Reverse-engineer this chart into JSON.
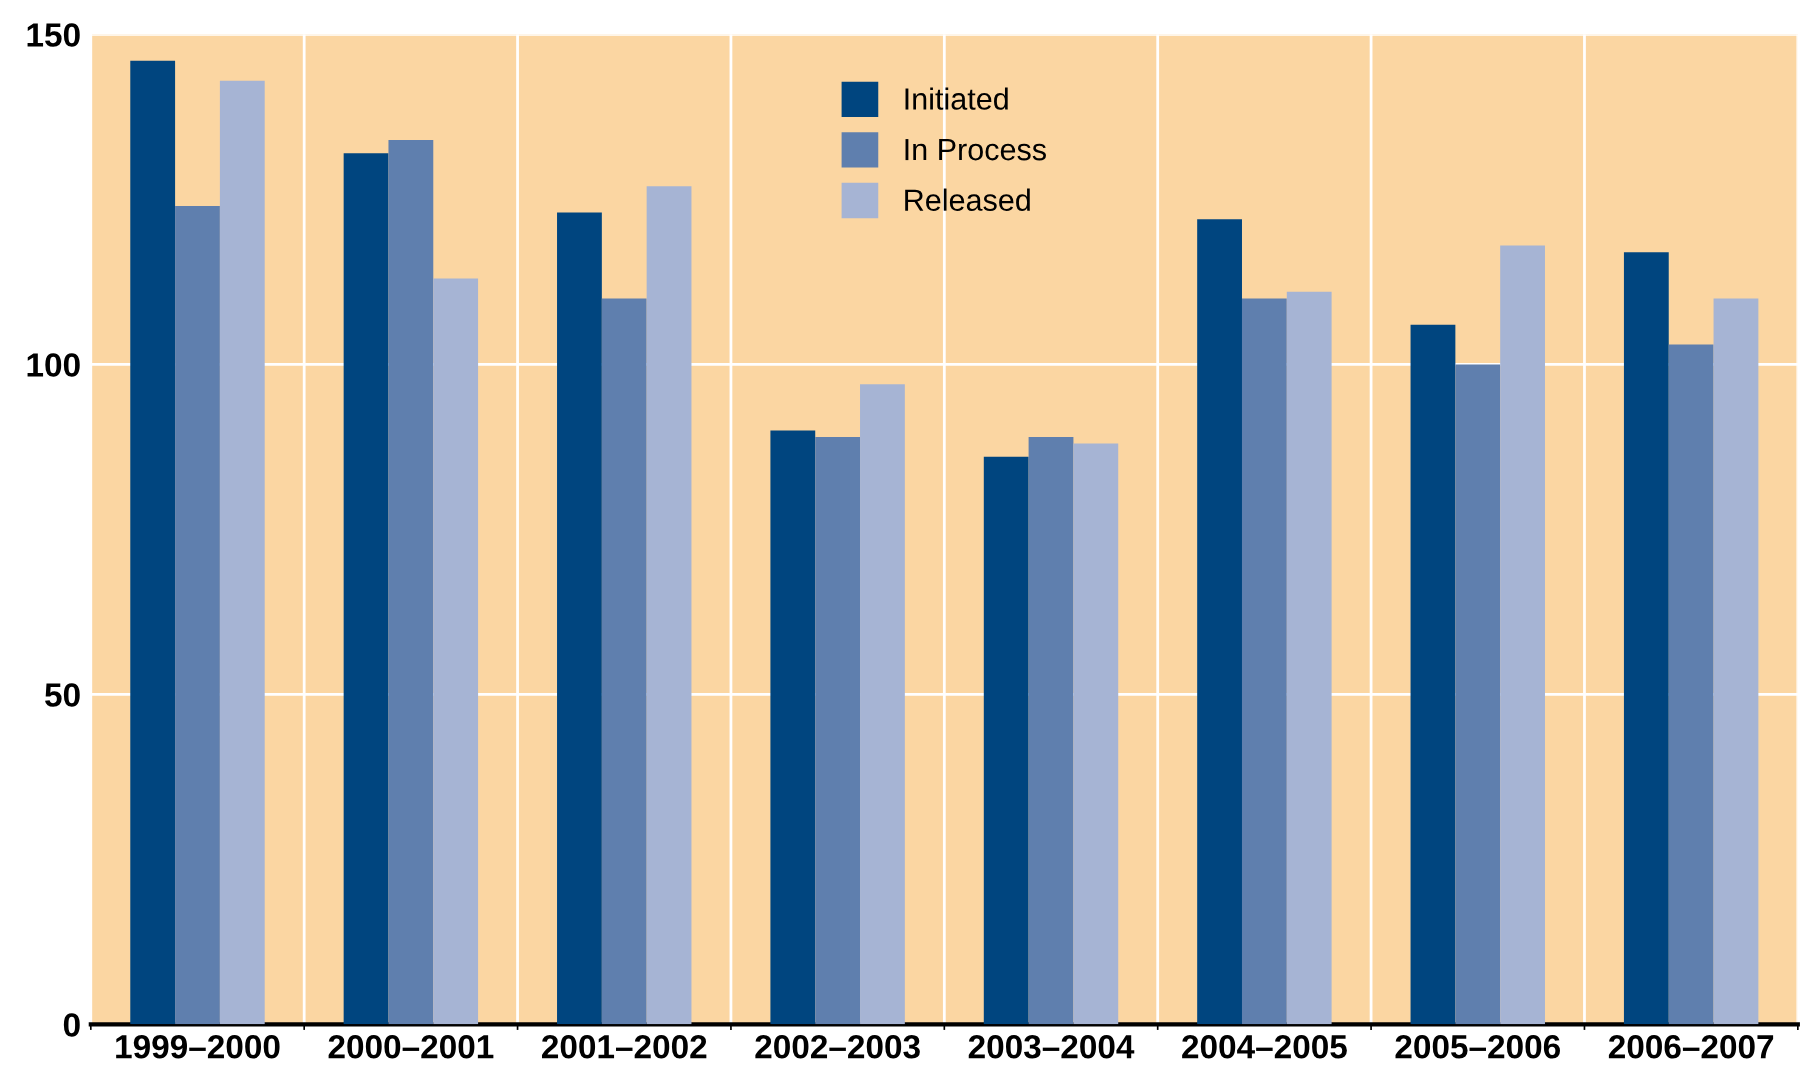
{
  "chart_data": {
    "type": "bar",
    "categories": [
      "1999–2000",
      "2000–2001",
      "2001–2002",
      "2002–2003",
      "2003–2004",
      "2004–2005",
      "2005–2006",
      "2006–2007"
    ],
    "series": [
      {
        "name": "Initiated",
        "color": "#00457f",
        "values": [
          146,
          132,
          123,
          90,
          86,
          122,
          106,
          117
        ]
      },
      {
        "name": "In Process",
        "color": "#5f7fae",
        "values": [
          124,
          134,
          110,
          89,
          89,
          110,
          100,
          103
        ]
      },
      {
        "name": "Released",
        "color": "#a6b4d4",
        "values": [
          143,
          113,
          127,
          97,
          88,
          111,
          118,
          110
        ]
      }
    ],
    "ylim": [
      0,
      150
    ],
    "yticks": [
      0,
      50,
      100,
      150
    ],
    "grid": true,
    "legend": "top"
  }
}
